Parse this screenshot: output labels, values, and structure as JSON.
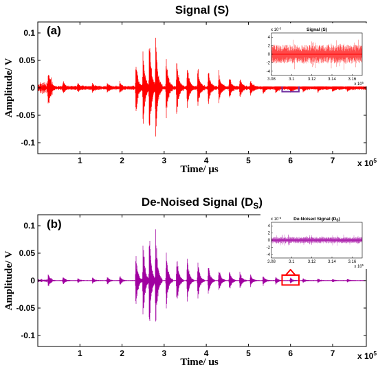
{
  "chart_data": [
    {
      "type": "line",
      "panel_label": "(a)",
      "title": "Signal (S)",
      "title_sub": "",
      "title_suffix": "",
      "xlabel": "Time/ μs",
      "ylabel": "Amplitude/ V",
      "x_multiplier": "x 10",
      "x_multiplier_exp": "5",
      "xlim": [
        0,
        7.8
      ],
      "ylim": [
        -0.12,
        0.12
      ],
      "x_ticks": [
        1,
        2,
        3,
        4,
        5,
        6,
        7
      ],
      "y_ticks": [
        0.1,
        0.05,
        0,
        -0.05,
        -0.1
      ],
      "y_tick_labels": [
        "0.1",
        "0.05",
        "0",
        "-0.05",
        "-0.1"
      ],
      "series_color": "#ff0000",
      "highlight_box_color": "#7030a0",
      "highlight_box_x": [
        5.8,
        6.2
      ],
      "highlight_box_y": [
        -0.007,
        0.007
      ],
      "bursts": [
        {
          "t": 0.25,
          "amp": 0.03
        },
        {
          "t": 0.6,
          "amp": 0.012
        },
        {
          "t": 0.95,
          "amp": 0.008
        },
        {
          "t": 1.3,
          "amp": 0.007
        },
        {
          "t": 1.65,
          "amp": 0.008
        },
        {
          "t": 1.95,
          "amp": 0.01
        },
        {
          "t": 2.33,
          "amp": 0.06
        },
        {
          "t": 2.5,
          "amp": 0.085
        },
        {
          "t": 2.65,
          "amp": 0.11
        },
        {
          "t": 2.8,
          "amp": 0.11
        },
        {
          "t": 3.05,
          "amp": 0.065
        },
        {
          "t": 3.3,
          "amp": 0.06
        },
        {
          "t": 3.55,
          "amp": 0.045
        },
        {
          "t": 3.8,
          "amp": 0.04
        },
        {
          "t": 4.05,
          "amp": 0.035
        },
        {
          "t": 4.3,
          "amp": 0.03
        },
        {
          "t": 4.55,
          "amp": 0.022
        },
        {
          "t": 4.8,
          "amp": 0.02
        },
        {
          "t": 5.05,
          "amp": 0.015
        },
        {
          "t": 5.35,
          "amp": 0.012
        },
        {
          "t": 5.65,
          "amp": 0.01
        },
        {
          "t": 6.0,
          "amp": 0.009
        },
        {
          "t": 6.3,
          "amp": 0.008
        },
        {
          "t": 6.65,
          "amp": 0.007
        },
        {
          "t": 7.0,
          "amp": 0.006
        },
        {
          "t": 7.35,
          "amp": 0.005
        }
      ],
      "noise_level": 0.003,
      "inset": {
        "title": "Signal (S)",
        "title_sub": "",
        "title_suffix": "",
        "y_multiplier": "x 10",
        "y_multiplier_exp": "-3",
        "x_multiplier": "x 10",
        "x_multiplier_exp": "5",
        "xlim": [
          3.08,
          3.17
        ],
        "ylim": [
          -5,
          5
        ],
        "x_ticks": [
          "3.08",
          "3.1",
          "3.12",
          "3.14",
          "3.16"
        ],
        "y_ticks": [
          "4",
          "2",
          "0",
          "-2",
          "-4"
        ],
        "noise_amp": 2.2
      }
    },
    {
      "type": "line",
      "panel_label": "(b)",
      "title": "De-Noised Signal (D",
      "title_sub": "S",
      "title_suffix": ")",
      "xlabel": "Time/ μs",
      "ylabel": "Amplitude/ V",
      "x_multiplier": "x 10",
      "x_multiplier_exp": "5",
      "xlim": [
        0,
        7.8
      ],
      "ylim": [
        -0.12,
        0.12
      ],
      "x_ticks": [
        1,
        2,
        3,
        4,
        5,
        6,
        7
      ],
      "y_ticks": [
        0.1,
        0.05,
        0,
        -0.05,
        -0.1
      ],
      "y_tick_labels": [
        "0.1",
        "0.05",
        "0",
        "-0.05",
        "-0.1"
      ],
      "series_color": "#a000a0",
      "highlight_box_color": "#ff0000",
      "highlight_box_x": [
        5.8,
        6.2
      ],
      "highlight_box_y": [
        -0.008,
        0.01
      ],
      "bursts": [
        {
          "t": 0.25,
          "amp": 0.012
        },
        {
          "t": 0.6,
          "amp": 0.008
        },
        {
          "t": 0.95,
          "amp": 0.005
        },
        {
          "t": 1.3,
          "amp": 0.006
        },
        {
          "t": 1.65,
          "amp": 0.008
        },
        {
          "t": 1.95,
          "amp": 0.01
        },
        {
          "t": 2.33,
          "amp": 0.06
        },
        {
          "t": 2.5,
          "amp": 0.085
        },
        {
          "t": 2.65,
          "amp": 0.105
        },
        {
          "t": 2.8,
          "amp": 0.105
        },
        {
          "t": 3.05,
          "amp": 0.06
        },
        {
          "t": 3.3,
          "amp": 0.055
        },
        {
          "t": 3.55,
          "amp": 0.045
        },
        {
          "t": 3.8,
          "amp": 0.04
        },
        {
          "t": 4.05,
          "amp": 0.035
        },
        {
          "t": 4.3,
          "amp": 0.028
        },
        {
          "t": 4.55,
          "amp": 0.022
        },
        {
          "t": 4.8,
          "amp": 0.018
        },
        {
          "t": 5.05,
          "amp": 0.012
        },
        {
          "t": 5.35,
          "amp": 0.01
        },
        {
          "t": 5.65,
          "amp": 0.008
        },
        {
          "t": 6.0,
          "amp": 0.006
        },
        {
          "t": 6.3,
          "amp": 0.004
        },
        {
          "t": 6.65,
          "amp": 0.004
        },
        {
          "t": 7.0,
          "amp": 0.003
        },
        {
          "t": 7.35,
          "amp": 0.003
        }
      ],
      "noise_level": 0.0008,
      "inset": {
        "title": "De-Noised Signal (D",
        "title_sub": "S",
        "title_suffix": ")",
        "y_multiplier": "x 10",
        "y_multiplier_exp": "-3",
        "x_multiplier": "x 10",
        "x_multiplier_exp": "5",
        "xlim": [
          3.08,
          3.17
        ],
        "ylim": [
          -5,
          5
        ],
        "x_ticks": [
          "3.08",
          "3.1",
          "3.12",
          "3.14",
          "3.16"
        ],
        "y_ticks": [
          "4",
          "2",
          "0",
          "-2",
          "-4"
        ],
        "noise_amp": 0.9
      }
    }
  ]
}
